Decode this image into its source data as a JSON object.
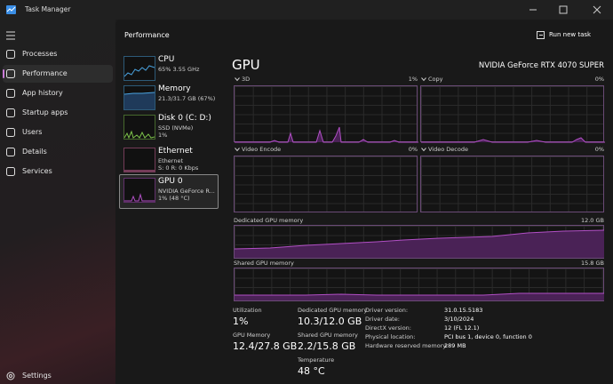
{
  "window": {
    "title": "Task Manager"
  },
  "nav": {
    "items": [
      "Processes",
      "Performance",
      "App history",
      "Startup apps",
      "Users",
      "Details",
      "Services"
    ],
    "settings": "Settings"
  },
  "header": {
    "title": "Performance",
    "action": "Run new task"
  },
  "devices": [
    {
      "name": "CPU",
      "lines": [
        "65% 3.55 GHz"
      ]
    },
    {
      "name": "Memory",
      "lines": [
        "21.3/31.7 GB (67%)"
      ]
    },
    {
      "name": "Disk 0 (C: D:)",
      "lines": [
        "SSD (NVMe)",
        "1%"
      ]
    },
    {
      "name": "Ethernet",
      "lines": [
        "Ethernet",
        "S: 0 R: 0 Kbps"
      ]
    },
    {
      "name": "GPU 0",
      "lines": [
        "NVIDIA GeForce R...",
        "1% (48 °C)"
      ]
    }
  ],
  "gpu": {
    "title": "GPU",
    "model": "NVIDIA GeForce RTX 4070 SUPER",
    "engines": [
      {
        "name": "3D",
        "value": "1%"
      },
      {
        "name": "Copy",
        "value": "0%"
      },
      {
        "name": "Video Encode",
        "value": "0%"
      },
      {
        "name": "Video Decode",
        "value": "0%"
      }
    ],
    "memory_graphs": [
      {
        "name": "Dedicated GPU memory",
        "max": "12.0 GB"
      },
      {
        "name": "Shared GPU memory",
        "max": "15.8 GB"
      }
    ],
    "stats": [
      {
        "label": "Utilization",
        "value": "1%"
      },
      {
        "label": "GPU Memory",
        "value": "12.4/27.8 GB"
      },
      {
        "label": "Dedicated GPU memory",
        "value": "10.3/12.0 GB"
      },
      {
        "label": "Shared GPU memory",
        "value": "2.2/15.8 GB"
      },
      {
        "label": "Temperature",
        "value": "48 °C"
      }
    ],
    "details": [
      {
        "label": "Driver version:",
        "value": "31.0.15.5183"
      },
      {
        "label": "Driver date:",
        "value": "3/10/2024"
      },
      {
        "label": "DirectX version:",
        "value": "12 (FL 12.1)"
      },
      {
        "label": "Physical location:",
        "value": "PCI bus 1, device 0, function 0"
      },
      {
        "label": "Hardware reserved memory:",
        "value": "289 MB"
      }
    ]
  }
}
